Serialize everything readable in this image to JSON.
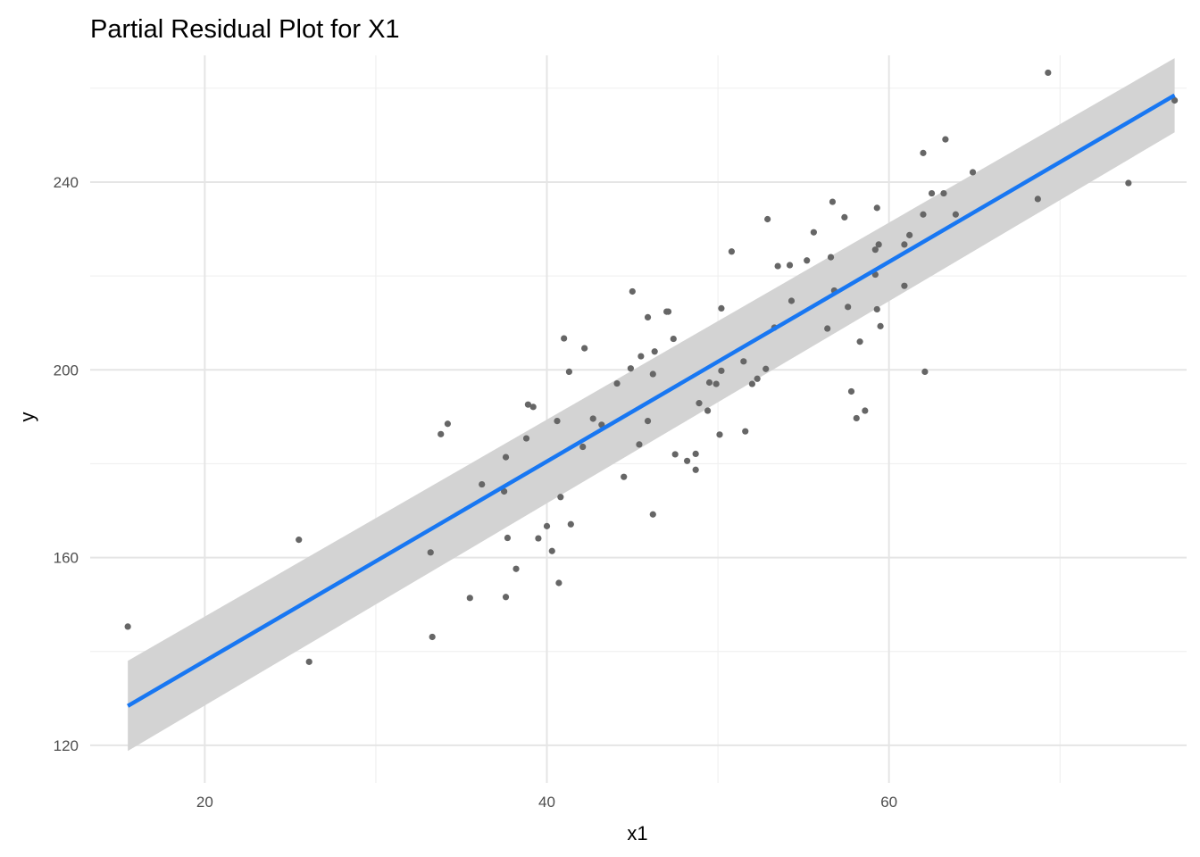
{
  "chart_data": {
    "type": "scatter",
    "title": "Partial Residual Plot for X1",
    "xlabel": "x1",
    "ylabel": "y",
    "xlim": [
      13.3,
      77.4
    ],
    "ylim": [
      112,
      267
    ],
    "x_ticks": [
      20,
      40,
      60
    ],
    "y_ticks": [
      120,
      160,
      200,
      240
    ],
    "grid": true,
    "theme": "minimal",
    "colors": {
      "points": "#666666",
      "fit_line": "#1877F2",
      "confidence_band": "#d3d3d3"
    },
    "points": [
      [
        15.5,
        145.3
      ],
      [
        25.5,
        163.8
      ],
      [
        26.1,
        137.8
      ],
      [
        33.2,
        161.1
      ],
      [
        33.3,
        143.1
      ],
      [
        33.8,
        186.3
      ],
      [
        34.2,
        188.5
      ],
      [
        35.5,
        151.4
      ],
      [
        36.2,
        175.6
      ],
      [
        37.5,
        174.1
      ],
      [
        37.6,
        181.4
      ],
      [
        37.6,
        151.6
      ],
      [
        37.7,
        164.2
      ],
      [
        38.2,
        157.6
      ],
      [
        38.8,
        185.4
      ],
      [
        38.9,
        192.6
      ],
      [
        39.2,
        192.1
      ],
      [
        39.5,
        164.1
      ],
      [
        40.0,
        166.7
      ],
      [
        40.3,
        161.4
      ],
      [
        40.6,
        189.1
      ],
      [
        40.7,
        154.6
      ],
      [
        40.8,
        172.9
      ],
      [
        41.0,
        206.7
      ],
      [
        41.3,
        199.6
      ],
      [
        41.4,
        167.1
      ],
      [
        42.1,
        183.6
      ],
      [
        42.2,
        204.6
      ],
      [
        42.7,
        189.6
      ],
      [
        43.2,
        188.3
      ],
      [
        44.1,
        197.1
      ],
      [
        44.5,
        177.2
      ],
      [
        44.9,
        200.3
      ],
      [
        45.0,
        216.7
      ],
      [
        45.4,
        184.1
      ],
      [
        45.5,
        202.9
      ],
      [
        45.9,
        211.2
      ],
      [
        45.9,
        189.1
      ],
      [
        46.2,
        169.2
      ],
      [
        46.2,
        199.1
      ],
      [
        46.3,
        203.9
      ],
      [
        47.0,
        212.4
      ],
      [
        47.1,
        212.4
      ],
      [
        47.4,
        206.6
      ],
      [
        47.5,
        182.0
      ],
      [
        48.2,
        180.6
      ],
      [
        48.7,
        182.1
      ],
      [
        48.7,
        178.7
      ],
      [
        48.9,
        192.9
      ],
      [
        49.4,
        191.3
      ],
      [
        49.5,
        197.3
      ],
      [
        49.9,
        197.0
      ],
      [
        50.1,
        186.2
      ],
      [
        50.2,
        199.8
      ],
      [
        50.2,
        213.1
      ],
      [
        50.8,
        225.2
      ],
      [
        51.5,
        201.8
      ],
      [
        51.6,
        186.9
      ],
      [
        52.0,
        197.0
      ],
      [
        52.3,
        198.1
      ],
      [
        52.8,
        200.2
      ],
      [
        52.9,
        232.1
      ],
      [
        53.3,
        209.0
      ],
      [
        53.5,
        222.1
      ],
      [
        54.2,
        222.3
      ],
      [
        54.3,
        214.7
      ],
      [
        55.2,
        223.3
      ],
      [
        55.6,
        229.3
      ],
      [
        56.4,
        208.8
      ],
      [
        56.6,
        224.0
      ],
      [
        56.7,
        235.8
      ],
      [
        56.8,
        216.9
      ],
      [
        57.4,
        232.5
      ],
      [
        57.6,
        213.4
      ],
      [
        57.8,
        195.4
      ],
      [
        58.1,
        189.7
      ],
      [
        58.3,
        206.0
      ],
      [
        58.6,
        191.3
      ],
      [
        59.2,
        225.6
      ],
      [
        59.2,
        220.3
      ],
      [
        59.3,
        212.9
      ],
      [
        59.3,
        234.5
      ],
      [
        59.4,
        226.7
      ],
      [
        59.5,
        209.3
      ],
      [
        60.9,
        226.7
      ],
      [
        60.9,
        217.9
      ],
      [
        61.2,
        228.7
      ],
      [
        62.0,
        233.1
      ],
      [
        62.0,
        246.2
      ],
      [
        62.1,
        199.6
      ],
      [
        62.5,
        237.6
      ],
      [
        63.2,
        237.6
      ],
      [
        63.3,
        249.1
      ],
      [
        63.9,
        233.1
      ],
      [
        64.9,
        242.1
      ],
      [
        68.7,
        236.4
      ],
      [
        69.3,
        263.3
      ],
      [
        74.0,
        239.8
      ],
      [
        76.7,
        257.4
      ]
    ],
    "fit": {
      "x": [
        15.5,
        76.7
      ],
      "y": [
        128.4,
        258.5
      ]
    },
    "band": {
      "x": [
        15.5,
        76.7
      ],
      "lower": [
        118.8,
        250.6
      ],
      "upper": [
        138.0,
        266.4
      ]
    }
  }
}
